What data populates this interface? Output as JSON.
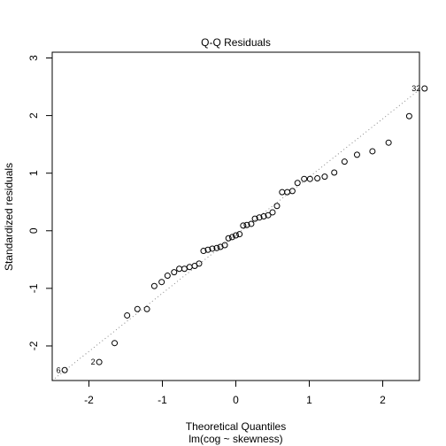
{
  "chart_data": {
    "type": "scatter",
    "title": "Q-Q Residuals",
    "xlabel": "Theoretical Quantiles",
    "xlabel2": "lm(cog ~ skewness)",
    "ylabel": "Standardized residuals",
    "xlim": [
      -2.5,
      2.5
    ],
    "ylim": [
      -2.6,
      3.1
    ],
    "xticks": [
      -2,
      -1,
      0,
      1,
      2
    ],
    "yticks": [
      -2,
      -1,
      0,
      1,
      2,
      3
    ],
    "reference_line": {
      "from": [
        -2.5,
        -2.6
      ],
      "to": [
        2.5,
        2.45
      ],
      "style": "dotted"
    },
    "points": [
      {
        "x": -2.33,
        "y": -2.42
      },
      {
        "x": -1.86,
        "y": -2.28
      },
      {
        "x": -1.65,
        "y": -1.95
      },
      {
        "x": -1.48,
        "y": -1.47
      },
      {
        "x": -1.34,
        "y": -1.36
      },
      {
        "x": -1.21,
        "y": -1.36
      },
      {
        "x": -1.11,
        "y": -0.96
      },
      {
        "x": -1.01,
        "y": -0.89
      },
      {
        "x": -0.93,
        "y": -0.78
      },
      {
        "x": -0.84,
        "y": -0.72
      },
      {
        "x": -0.77,
        "y": -0.66
      },
      {
        "x": -0.7,
        "y": -0.66
      },
      {
        "x": -0.63,
        "y": -0.63
      },
      {
        "x": -0.56,
        "y": -0.61
      },
      {
        "x": -0.5,
        "y": -0.57
      },
      {
        "x": -0.44,
        "y": -0.35
      },
      {
        "x": -0.38,
        "y": -0.33
      },
      {
        "x": -0.32,
        "y": -0.31
      },
      {
        "x": -0.26,
        "y": -0.3
      },
      {
        "x": -0.21,
        "y": -0.28
      },
      {
        "x": -0.15,
        "y": -0.25
      },
      {
        "x": -0.1,
        "y": -0.13
      },
      {
        "x": -0.05,
        "y": -0.11
      },
      {
        "x": 0.0,
        "y": -0.08
      },
      {
        "x": 0.05,
        "y": -0.06
      },
      {
        "x": 0.1,
        "y": 0.09
      },
      {
        "x": 0.15,
        "y": 0.1
      },
      {
        "x": 0.21,
        "y": 0.12
      },
      {
        "x": 0.26,
        "y": 0.21
      },
      {
        "x": 0.32,
        "y": 0.23
      },
      {
        "x": 0.38,
        "y": 0.25
      },
      {
        "x": 0.44,
        "y": 0.27
      },
      {
        "x": 0.5,
        "y": 0.32
      },
      {
        "x": 0.56,
        "y": 0.43
      },
      {
        "x": 0.63,
        "y": 0.67
      },
      {
        "x": 0.7,
        "y": 0.67
      },
      {
        "x": 0.77,
        "y": 0.69
      },
      {
        "x": 0.84,
        "y": 0.83
      },
      {
        "x": 0.93,
        "y": 0.9
      },
      {
        "x": 1.01,
        "y": 0.9
      },
      {
        "x": 1.11,
        "y": 0.91
      },
      {
        "x": 1.21,
        "y": 0.94
      },
      {
        "x": 1.34,
        "y": 1.01
      },
      {
        "x": 1.48,
        "y": 1.2
      },
      {
        "x": 1.65,
        "y": 1.32
      },
      {
        "x": 1.86,
        "y": 1.38
      },
      {
        "x": 2.08,
        "y": 1.53
      },
      {
        "x": 2.36,
        "y": 1.99
      },
      {
        "x": 2.57,
        "y": 2.47
      }
    ],
    "point_labels": [
      {
        "text": "6",
        "x": -2.33,
        "y": -2.42
      },
      {
        "text": "2",
        "x": -1.86,
        "y": -2.28
      },
      {
        "text": "32",
        "x": 2.57,
        "y": 2.47
      }
    ]
  }
}
